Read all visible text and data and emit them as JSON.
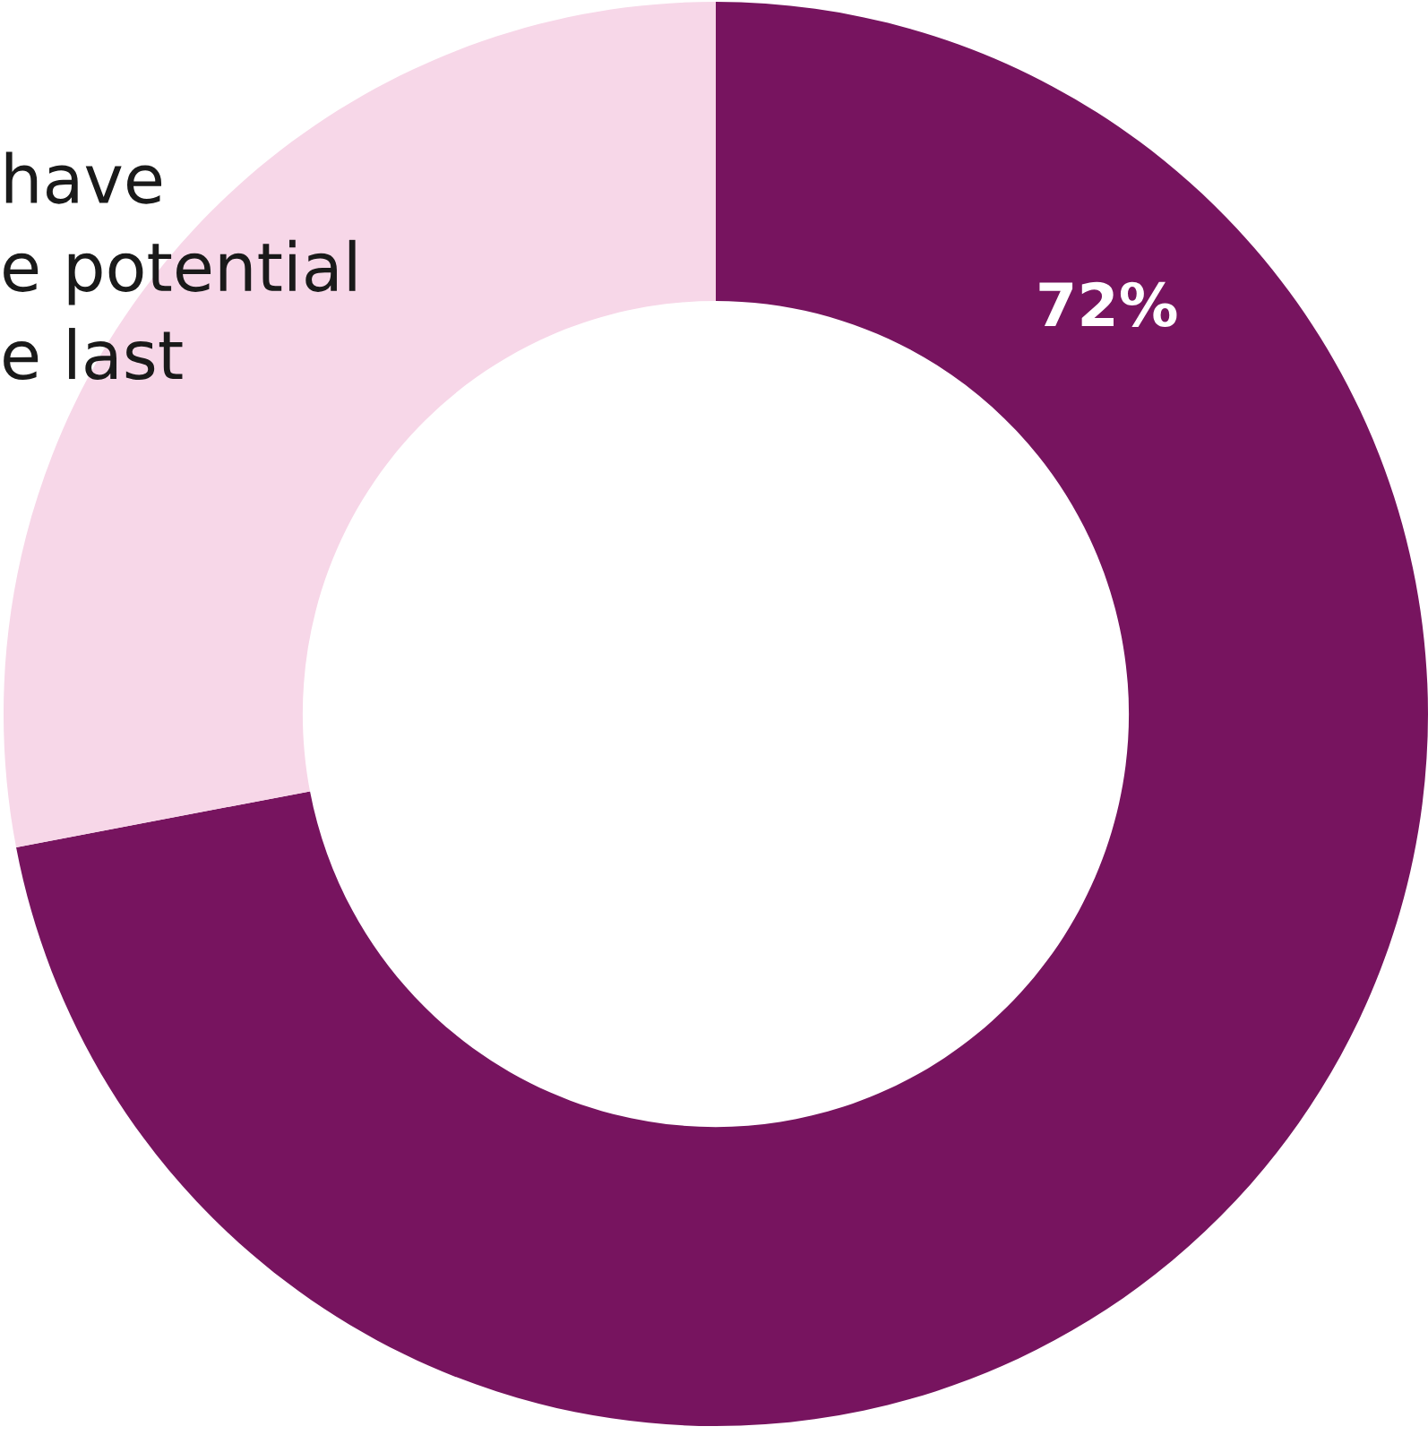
{
  "chart_data": {
    "type": "donut",
    "categories": [
      null,
      null
    ],
    "values": [
      72,
      28
    ],
    "colors": [
      "#77145f",
      "#f7d7e8"
    ],
    "value_labels": [
      "72%",
      null
    ],
    "annotations": [
      "have\ne potential\ne last"
    ]
  }
}
